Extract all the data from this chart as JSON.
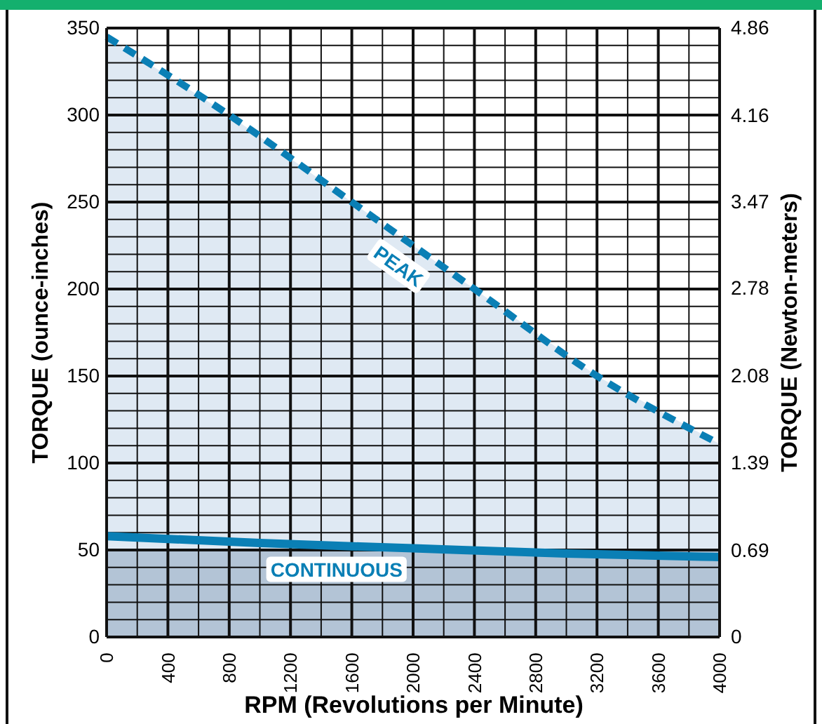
{
  "chart_data": {
    "type": "area",
    "xlabel": "RPM (Revolutions per Minute)",
    "ylabel": "TORQUE (ounce-inches)",
    "y2label": "TORQUE (Newton-meters)",
    "xlim": [
      0,
      4000
    ],
    "xticks": [
      0,
      {
        "value": 200,
        "label": null
      },
      400,
      {
        "value": 600,
        "label": null
      },
      800,
      {
        "value": 1000,
        "label": null
      },
      1200,
      {
        "value": 1400,
        "label": null
      },
      1600,
      {
        "value": 1800,
        "label": null
      },
      2000,
      {
        "value": 2200,
        "label": null
      },
      2400,
      {
        "value": 2600,
        "label": null
      },
      2800,
      {
        "value": 3000,
        "label": null
      },
      3200,
      {
        "value": 3400,
        "label": null
      },
      3600,
      {
        "value": 3800,
        "label": null
      },
      4000
    ],
    "ylim": [
      0,
      350
    ],
    "yticks": [
      0,
      {
        "value": 10,
        "label": null
      },
      {
        "value": 20,
        "label": null
      },
      {
        "value": 30,
        "label": null
      },
      {
        "value": 40,
        "label": null
      },
      50,
      {
        "value": 60,
        "label": null
      },
      {
        "value": 70,
        "label": null
      },
      {
        "value": 80,
        "label": null
      },
      {
        "value": 90,
        "label": null
      },
      100,
      {
        "value": 110,
        "label": null
      },
      {
        "value": 120,
        "label": null
      },
      {
        "value": 130,
        "label": null
      },
      {
        "value": 140,
        "label": null
      },
      150,
      {
        "value": 160,
        "label": null
      },
      {
        "value": 170,
        "label": null
      },
      {
        "value": 180,
        "label": null
      },
      {
        "value": 190,
        "label": null
      },
      200,
      {
        "value": 210,
        "label": null
      },
      {
        "value": 220,
        "label": null
      },
      {
        "value": 230,
        "label": null
      },
      {
        "value": 240,
        "label": null
      },
      250,
      {
        "value": 260,
        "label": null
      },
      {
        "value": 270,
        "label": null
      },
      {
        "value": 280,
        "label": null
      },
      {
        "value": 290,
        "label": null
      },
      300,
      {
        "value": 310,
        "label": null
      },
      {
        "value": 320,
        "label": null
      },
      {
        "value": 330,
        "label": null
      },
      {
        "value": 340,
        "label": null
      },
      350
    ],
    "y2lim": [
      0,
      4.86
    ],
    "y2ticks": [
      0,
      0.69,
      1.39,
      2.08,
      2.78,
      3.47,
      4.16,
      4.86
    ],
    "grid": true,
    "bands": [
      {
        "axis": "y",
        "from": 0,
        "to": 50,
        "color": "#b3c4d6"
      }
    ],
    "series": [
      {
        "name": "PEAK",
        "color": "#0a7fb5",
        "line_style": "dashed",
        "x": [
          0,
          800,
          1600,
          2400,
          3200,
          4000
        ],
        "values": [
          345,
          300,
          250,
          200,
          150,
          111
        ]
      },
      {
        "name": "CONTINUOUS",
        "type": "line",
        "color": "#0a7fb5",
        "line_style": "solid",
        "x": [
          0,
          1000,
          2000,
          3000,
          4000
        ],
        "values": [
          58,
          54,
          51,
          48,
          46
        ]
      }
    ]
  }
}
